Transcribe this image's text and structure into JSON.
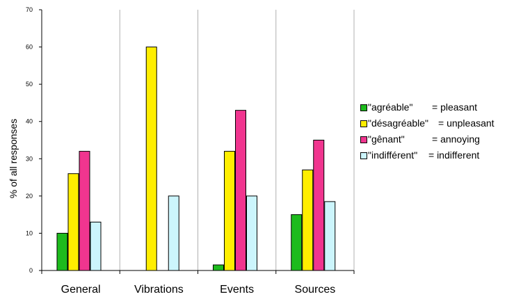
{
  "chart_data": {
    "type": "bar",
    "categories": [
      "General",
      "Vibrations",
      "Events",
      "Sources"
    ],
    "ylabel": "% of all responses",
    "ylim": [
      0,
      70
    ],
    "yticks": [
      0,
      10,
      20,
      30,
      40,
      50,
      60,
      70
    ],
    "grid": "vertical",
    "legend_position": "right",
    "series": [
      {
        "name": "\"agréable\"",
        "meaning": "= pleasant",
        "color": "#1dbb1d",
        "values": [
          10,
          0,
          1.5,
          15
        ]
      },
      {
        "name": "\"désagréable\"",
        "meaning": "= unpleasant",
        "color": "#ffee00",
        "values": [
          26,
          60,
          32,
          27
        ]
      },
      {
        "name": "\"gênant\"",
        "meaning": "= annoying",
        "color": "#f0358f",
        "values": [
          32,
          0,
          43,
          35
        ]
      },
      {
        "name": "\"indifférent\"",
        "meaning": "= indifferent",
        "color": "#ccf5fc",
        "values": [
          13,
          20,
          20,
          18.5
        ]
      }
    ]
  }
}
